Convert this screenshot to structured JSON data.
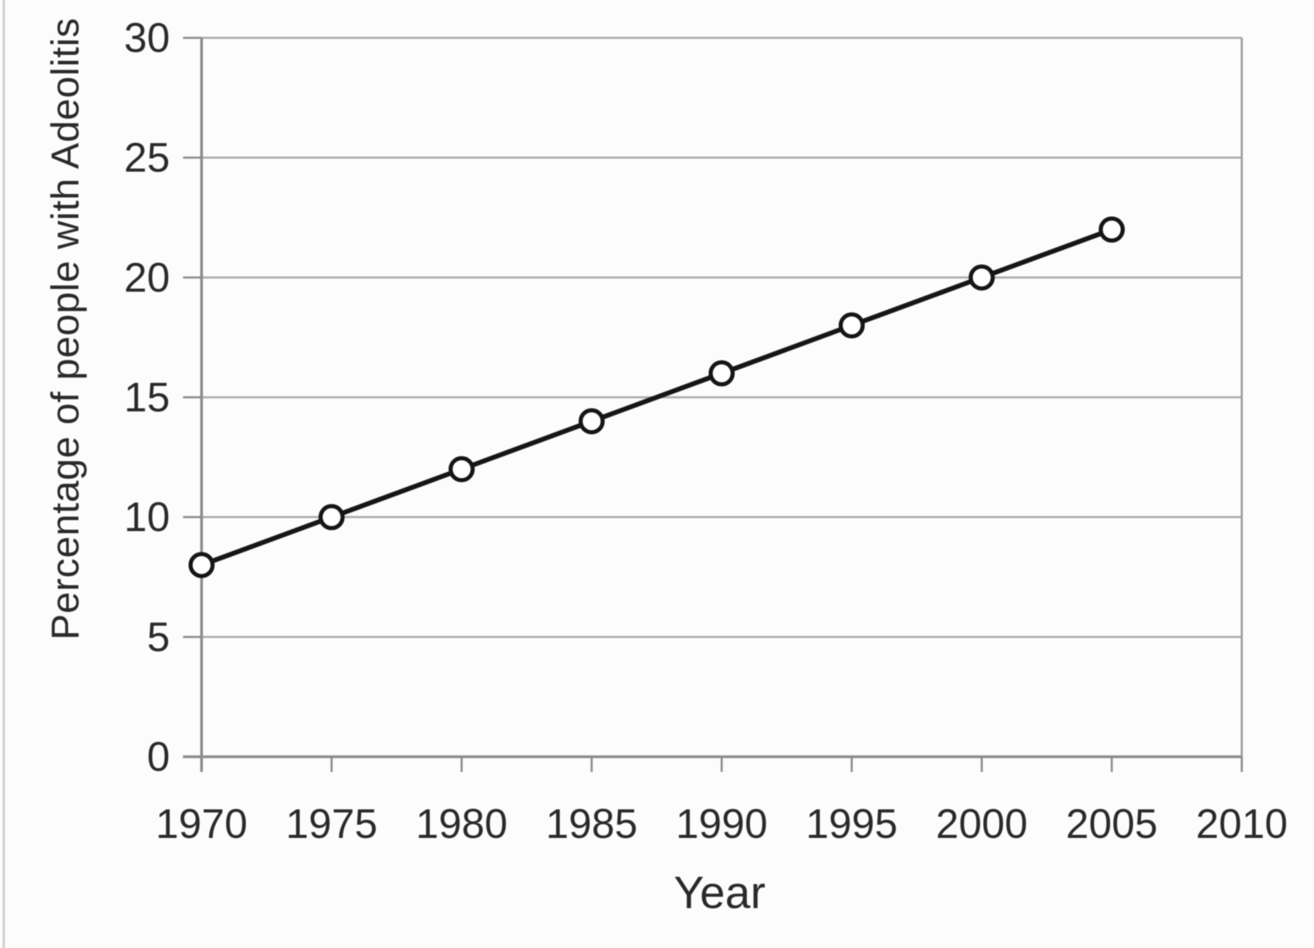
{
  "chart_data": {
    "type": "line",
    "title": "",
    "xlabel": "Year",
    "ylabel": "Percentage of people with Adeolitis",
    "x": [
      1970,
      1975,
      1980,
      1985,
      1990,
      1995,
      2000,
      2005
    ],
    "values": [
      8,
      10,
      12,
      14,
      16,
      18,
      20,
      22
    ],
    "series": [
      {
        "name": "Percentage of people with Adeolitis",
        "values": [
          8,
          10,
          12,
          14,
          16,
          18,
          20,
          22
        ]
      }
    ],
    "xlim": [
      1970,
      2010
    ],
    "ylim": [
      0,
      30
    ],
    "xticks": [
      1970,
      1975,
      1980,
      1985,
      1990,
      1995,
      2000,
      2005,
      2010
    ],
    "yticks": [
      0,
      5,
      10,
      15,
      20,
      25,
      30
    ],
    "grid": "horizontal",
    "legend_position": "none",
    "marker": "open-circle",
    "colors": {
      "line": "#161616",
      "marker_fill": "#ffffff",
      "grid": "#ababab",
      "axis": "#8c8c8c",
      "border": "#9c9c9c",
      "text": "#2a2a2a"
    }
  }
}
